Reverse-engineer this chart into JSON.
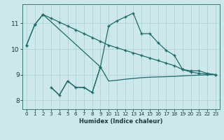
{
  "xlabel": "Humidex (Indice chaleur)",
  "bg_color": "#cce8ea",
  "grid_color": "#afd4d6",
  "line_color": "#1e6b6b",
  "xlim": [
    -0.5,
    23.5
  ],
  "ylim": [
    7.65,
    11.75
  ],
  "yticks": [
    8,
    9,
    10,
    11
  ],
  "xticks": [
    0,
    1,
    2,
    3,
    4,
    5,
    6,
    7,
    8,
    9,
    10,
    11,
    12,
    13,
    14,
    15,
    16,
    17,
    18,
    19,
    20,
    21,
    22,
    23
  ],
  "series_upper_x": [
    0,
    1,
    2,
    3,
    4,
    5,
    6,
    7,
    8,
    9,
    10,
    11,
    12,
    13,
    14,
    15,
    16,
    17,
    18,
    19,
    20,
    21,
    22,
    23
  ],
  "series_upper_y": [
    10.15,
    10.95,
    11.35,
    11.2,
    11.05,
    10.9,
    10.75,
    10.6,
    10.45,
    10.3,
    10.15,
    10.05,
    9.95,
    9.85,
    9.75,
    9.65,
    9.55,
    9.45,
    9.35,
    9.2,
    9.1,
    9.05,
    9.02,
    9.0
  ],
  "series_mid_x": [
    0,
    1,
    2,
    9,
    10,
    11,
    12,
    13,
    14,
    15,
    16,
    17,
    18,
    19,
    20,
    21,
    22,
    23
  ],
  "series_mid_y": [
    10.15,
    10.95,
    11.35,
    9.3,
    10.9,
    11.1,
    11.25,
    11.4,
    10.6,
    10.6,
    10.25,
    9.95,
    9.75,
    9.2,
    9.15,
    9.15,
    9.05,
    9.0
  ],
  "series_low_x": [
    3,
    4,
    5,
    6,
    7,
    8,
    9,
    10,
    11,
    12,
    13,
    14,
    15,
    16,
    17,
    18,
    19,
    20,
    21,
    22,
    23
  ],
  "series_low_y": [
    8.5,
    8.2,
    8.75,
    8.5,
    8.5,
    8.3,
    9.3,
    8.75,
    8.78,
    8.82,
    8.85,
    8.88,
    8.9,
    8.91,
    8.92,
    8.93,
    8.95,
    8.97,
    8.98,
    8.99,
    9.0
  ],
  "series_noisy_x": [
    3,
    4,
    5,
    6,
    7,
    8,
    9
  ],
  "series_noisy_y": [
    8.5,
    8.2,
    8.75,
    8.5,
    8.5,
    8.3,
    9.3
  ]
}
